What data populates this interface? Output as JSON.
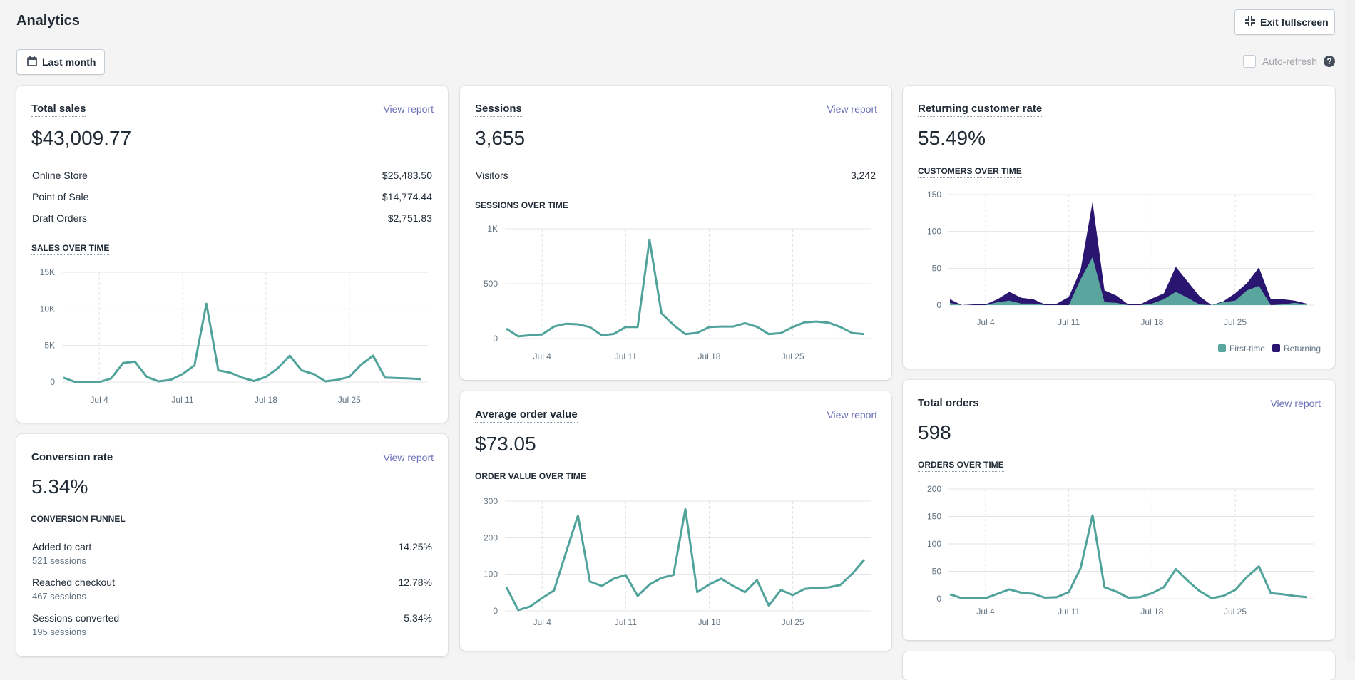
{
  "header": {
    "title": "Analytics",
    "exit_fullscreen_label": "Exit fullscreen",
    "date_range_label": "Last month",
    "auto_refresh_label": "Auto-refresh",
    "auto_refresh_checked": false,
    "help_icon": "?"
  },
  "colors": {
    "line": "#50a39b",
    "first_time": "#5aa69f",
    "returning": "#2a1670",
    "link": "#6b70b8"
  },
  "total_sales": {
    "title": "Total sales",
    "view_report": "View report",
    "value": "$43,009.77",
    "breakdown": [
      {
        "label": "Online Store",
        "value": "$25,483.50"
      },
      {
        "label": "Point of Sale",
        "value": "$14,774.44"
      },
      {
        "label": "Draft Orders",
        "value": "$2,751.83"
      }
    ],
    "chart_label": "SALES OVER TIME"
  },
  "sessions": {
    "title": "Sessions",
    "view_report": "View report",
    "value": "3,655",
    "breakdown": [
      {
        "label": "Visitors",
        "value": "3,242"
      }
    ],
    "chart_label": "SESSIONS OVER TIME"
  },
  "returning_customer_rate": {
    "title": "Returning customer rate",
    "value": "55.49%",
    "chart_label": "CUSTOMERS OVER TIME",
    "legend": [
      "First-time",
      "Returning"
    ]
  },
  "conversion_rate": {
    "title": "Conversion rate",
    "view_report": "View report",
    "value": "5.34%",
    "funnel_label": "CONVERSION FUNNEL",
    "funnel": [
      {
        "label": "Added to cart",
        "sessions": "521 sessions",
        "pct": "14.25%"
      },
      {
        "label": "Reached checkout",
        "sessions": "467 sessions",
        "pct": "12.78%"
      },
      {
        "label": "Sessions converted",
        "sessions": "195 sessions",
        "pct": "5.34%"
      }
    ]
  },
  "average_order_value": {
    "title": "Average order value",
    "view_report": "View report",
    "value": "$73.05",
    "chart_label": "ORDER VALUE OVER TIME"
  },
  "total_orders": {
    "title": "Total orders",
    "view_report": "View report",
    "value": "598",
    "chart_label": "ORDERS OVER TIME"
  },
  "chart_data": [
    {
      "id": "sales",
      "type": "line",
      "title": "SALES OVER TIME",
      "x_days": 31,
      "x_ticks": [
        {
          "day": 4,
          "label": "Jul 4"
        },
        {
          "day": 11,
          "label": "Jul 11"
        },
        {
          "day": 18,
          "label": "Jul 18"
        },
        {
          "day": 25,
          "label": "Jul 25"
        }
      ],
      "y_ticks": [
        {
          "v": 0,
          "label": "0"
        },
        {
          "v": 5000,
          "label": "5K"
        },
        {
          "v": 10000,
          "label": "10K"
        },
        {
          "v": 15000,
          "label": "15K"
        }
      ],
      "ylim": [
        0,
        15000
      ],
      "series": [
        {
          "name": "Sales",
          "values": [
            600,
            0,
            0,
            0,
            500,
            2600,
            2800,
            700,
            100,
            300,
            1100,
            2300,
            10700,
            1600,
            1300,
            600,
            150,
            700,
            1900,
            3600,
            1600,
            1100,
            100,
            300,
            700,
            2400,
            3600,
            600,
            550,
            500,
            400
          ]
        }
      ]
    },
    {
      "id": "sessions",
      "type": "line",
      "title": "SESSIONS OVER TIME",
      "x_days": 31,
      "x_ticks": [
        {
          "day": 4,
          "label": "Jul 4"
        },
        {
          "day": 11,
          "label": "Jul 11"
        },
        {
          "day": 18,
          "label": "Jul 18"
        },
        {
          "day": 25,
          "label": "Jul 25"
        }
      ],
      "y_ticks": [
        {
          "v": 0,
          "label": "0"
        },
        {
          "v": 500,
          "label": "500"
        },
        {
          "v": 1000,
          "label": "1K"
        }
      ],
      "ylim": [
        0,
        1000
      ],
      "series": [
        {
          "name": "Sessions",
          "values": [
            90,
            20,
            30,
            38,
            110,
            135,
            130,
            105,
            30,
            42,
            105,
            105,
            900,
            230,
            125,
            40,
            52,
            105,
            110,
            110,
            140,
            108,
            40,
            50,
            105,
            148,
            155,
            145,
            105,
            50,
            40
          ]
        }
      ]
    },
    {
      "id": "customers",
      "type": "area",
      "title": "CUSTOMERS OVER TIME",
      "stacked": true,
      "x_days": 31,
      "x_ticks": [
        {
          "day": 4,
          "label": "Jul 4"
        },
        {
          "day": 11,
          "label": "Jul 11"
        },
        {
          "day": 18,
          "label": "Jul 18"
        },
        {
          "day": 25,
          "label": "Jul 25"
        }
      ],
      "y_ticks": [
        {
          "v": 0,
          "label": "0"
        },
        {
          "v": 50,
          "label": "50"
        },
        {
          "v": 100,
          "label": "100"
        },
        {
          "v": 150,
          "label": "150"
        }
      ],
      "ylim": [
        0,
        150
      ],
      "legend": "bottom-right",
      "series": [
        {
          "name": "First-time",
          "values": [
            3,
            0,
            0,
            0,
            4,
            6,
            2,
            2,
            0,
            0,
            0,
            35,
            65,
            4,
            3,
            0,
            0,
            2,
            8,
            18,
            10,
            1,
            0,
            4,
            6,
            20,
            26,
            0,
            1,
            3,
            1
          ]
        },
        {
          "name": "Returning",
          "values": [
            5,
            0,
            1,
            1,
            4,
            12,
            8,
            6,
            1,
            2,
            11,
            13,
            75,
            16,
            10,
            1,
            1,
            7,
            8,
            34,
            22,
            11,
            0,
            1,
            10,
            10,
            25,
            8,
            7,
            3,
            1
          ]
        }
      ]
    },
    {
      "id": "aov",
      "type": "line",
      "title": "ORDER VALUE OVER TIME",
      "x_days": 31,
      "x_ticks": [
        {
          "day": 4,
          "label": "Jul 4"
        },
        {
          "day": 11,
          "label": "Jul 11"
        },
        {
          "day": 18,
          "label": "Jul 18"
        },
        {
          "day": 25,
          "label": "Jul 25"
        }
      ],
      "y_ticks": [
        {
          "v": 0,
          "label": "0"
        },
        {
          "v": 100,
          "label": "100"
        },
        {
          "v": 200,
          "label": "200"
        },
        {
          "v": 300,
          "label": "300"
        }
      ],
      "ylim": [
        0,
        300
      ],
      "series": [
        {
          "name": "Average order value",
          "values": [
            65,
            2,
            12,
            35,
            56,
            160,
            260,
            80,
            68,
            88,
            98,
            41,
            72,
            90,
            98,
            278,
            51,
            72,
            88,
            68,
            51,
            84,
            14,
            57,
            43,
            60,
            63,
            64,
            71,
            102,
            140
          ]
        }
      ]
    },
    {
      "id": "orders",
      "type": "line",
      "title": "ORDERS OVER TIME",
      "x_days": 31,
      "x_ticks": [
        {
          "day": 4,
          "label": "Jul 4"
        },
        {
          "day": 11,
          "label": "Jul 11"
        },
        {
          "day": 18,
          "label": "Jul 18"
        },
        {
          "day": 25,
          "label": "Jul 25"
        }
      ],
      "y_ticks": [
        {
          "v": 0,
          "label": "0"
        },
        {
          "v": 50,
          "label": "50"
        },
        {
          "v": 100,
          "label": "100"
        },
        {
          "v": 150,
          "label": "150"
        },
        {
          "v": 200,
          "label": "200"
        }
      ],
      "ylim": [
        0,
        200
      ],
      "series": [
        {
          "name": "Orders",
          "values": [
            8,
            1,
            1,
            1,
            9,
            17,
            11,
            9,
            2,
            3,
            12,
            56,
            152,
            21,
            13,
            2,
            3,
            10,
            21,
            54,
            33,
            14,
            1,
            5,
            16,
            40,
            59,
            10,
            8,
            5,
            3
          ]
        }
      ]
    }
  ]
}
